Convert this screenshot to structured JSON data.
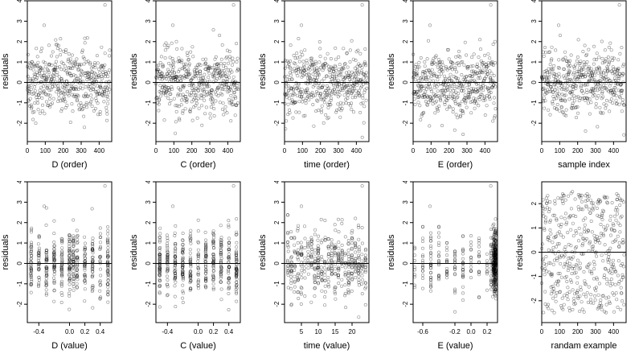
{
  "chart_data": [
    {
      "id": "d-order",
      "type": "scatter",
      "x_kind": "order",
      "xlabel": "D (order)",
      "ylabel": "residuals",
      "xlim": [
        0,
        470
      ],
      "xticks": [
        0,
        100,
        200,
        300,
        400
      ],
      "ylim": [
        -2.9,
        4.0
      ],
      "yticks": [
        -2,
        -1,
        0,
        1,
        2,
        3,
        4
      ],
      "hline": 0
    },
    {
      "id": "c-order",
      "type": "scatter",
      "x_kind": "order",
      "xlabel": "C (order)",
      "ylabel": "residuals",
      "xlim": [
        0,
        470
      ],
      "xticks": [
        0,
        100,
        200,
        300,
        400
      ],
      "ylim": [
        -2.9,
        4.0
      ],
      "yticks": [
        -2,
        -1,
        0,
        1,
        2,
        3,
        4
      ],
      "hline": 0
    },
    {
      "id": "time-order",
      "type": "scatter",
      "x_kind": "order",
      "xlabel": "time (order)",
      "ylabel": "residuals",
      "xlim": [
        0,
        470
      ],
      "xticks": [
        0,
        100,
        200,
        300,
        400
      ],
      "ylim": [
        -2.9,
        4.0
      ],
      "yticks": [
        -2,
        -1,
        0,
        1,
        2,
        3,
        4
      ],
      "hline": 0
    },
    {
      "id": "e-order",
      "type": "scatter",
      "x_kind": "order",
      "xlabel": "E (order)",
      "ylabel": "residuals",
      "xlim": [
        0,
        470
      ],
      "xticks": [
        0,
        100,
        200,
        300,
        400
      ],
      "ylim": [
        -2.9,
        4.0
      ],
      "yticks": [
        -2,
        -1,
        0,
        1,
        2,
        3,
        4
      ],
      "hline": 0
    },
    {
      "id": "sample-index",
      "type": "scatter",
      "x_kind": "order",
      "xlabel": "sample index",
      "ylabel": "residuals",
      "xlim": [
        0,
        470
      ],
      "xticks": [
        0,
        100,
        200,
        300,
        400
      ],
      "ylim": [
        -2.9,
        4.0
      ],
      "yticks": [
        -2,
        -1,
        0,
        1,
        2,
        3,
        4
      ],
      "hline": 0
    },
    {
      "id": "d-value",
      "type": "scatter",
      "x_kind": "levels",
      "levels": [
        -0.5,
        -0.4,
        -0.3,
        -0.2,
        -0.1,
        0,
        0.05,
        0.1,
        0.2,
        0.3,
        0.4,
        0.5
      ],
      "xlabel": "D (value)",
      "ylabel": "residuals",
      "xlim": [
        -0.55,
        0.55
      ],
      "xticks": [
        -0.4,
        0,
        0.2,
        0.4
      ],
      "xticklabels": [
        "-0.4",
        "0.0",
        "0.2",
        "0.4"
      ],
      "ylim": [
        -2.9,
        4.0
      ],
      "yticks": [
        -2,
        -1,
        0,
        1,
        2,
        3,
        4
      ],
      "hline": 0
    },
    {
      "id": "c-value",
      "type": "scatter",
      "x_kind": "levels",
      "levels": [
        -0.5,
        -0.4,
        -0.3,
        -0.2,
        -0.1,
        0,
        0.1,
        0.2,
        0.3,
        0.4,
        0.5
      ],
      "xlabel": "C (value)",
      "ylabel": "residuals",
      "xlim": [
        -0.55,
        0.55
      ],
      "xticks": [
        -0.4,
        0,
        0.2,
        0.4
      ],
      "xticklabels": [
        "-0.4",
        "0.0",
        "0.2",
        "0.4"
      ],
      "ylim": [
        -2.9,
        4.0
      ],
      "yticks": [
        -2,
        -1,
        0,
        1,
        2,
        3,
        4
      ],
      "hline": 0
    },
    {
      "id": "time-value",
      "type": "scatter",
      "x_kind": "levels",
      "levels": [
        1,
        2,
        3,
        4,
        5,
        6,
        7,
        8,
        9,
        10,
        11,
        12,
        13,
        14,
        15,
        16,
        17,
        18,
        19,
        20,
        21,
        22,
        23,
        24
      ],
      "xlabel": "time (value)",
      "ylabel": "residuals",
      "xlim": [
        0,
        25
      ],
      "xticks": [
        5,
        10,
        15,
        20
      ],
      "ylim": [
        -2.9,
        4.0
      ],
      "yticks": [
        -2,
        -1,
        0,
        1,
        2,
        3,
        4
      ],
      "hline": 0
    },
    {
      "id": "e-value",
      "type": "scatter",
      "x_kind": "levels_weighted",
      "levels": [
        -0.7,
        -0.6,
        -0.5,
        -0.4,
        -0.3,
        -0.2,
        -0.1,
        0.0,
        0.1,
        0.2,
        0.25,
        0.28,
        0.3
      ],
      "xlabel": "E (value)",
      "ylabel": "residuals",
      "xlim": [
        -0.72,
        0.33
      ],
      "xticks": [
        -0.6,
        -0.2,
        0,
        0.2
      ],
      "xticklabels": [
        "-0.6",
        "-0.2",
        "0.0",
        "0.2"
      ],
      "ylim": [
        -2.9,
        4.0
      ],
      "yticks": [
        -2,
        -1,
        0,
        1,
        2,
        3,
        4
      ],
      "hline": 0
    },
    {
      "id": "random-example",
      "type": "scatter",
      "x_kind": "random",
      "xlabel": "randam example",
      "ylabel": "residuals",
      "xlim": [
        0,
        470
      ],
      "xticks": [
        0,
        100,
        200,
        300,
        400
      ],
      "ylim": [
        -2.9,
        2.9
      ],
      "yticks": [
        -2,
        -1,
        0,
        1,
        2
      ],
      "hline": 0
    }
  ]
}
